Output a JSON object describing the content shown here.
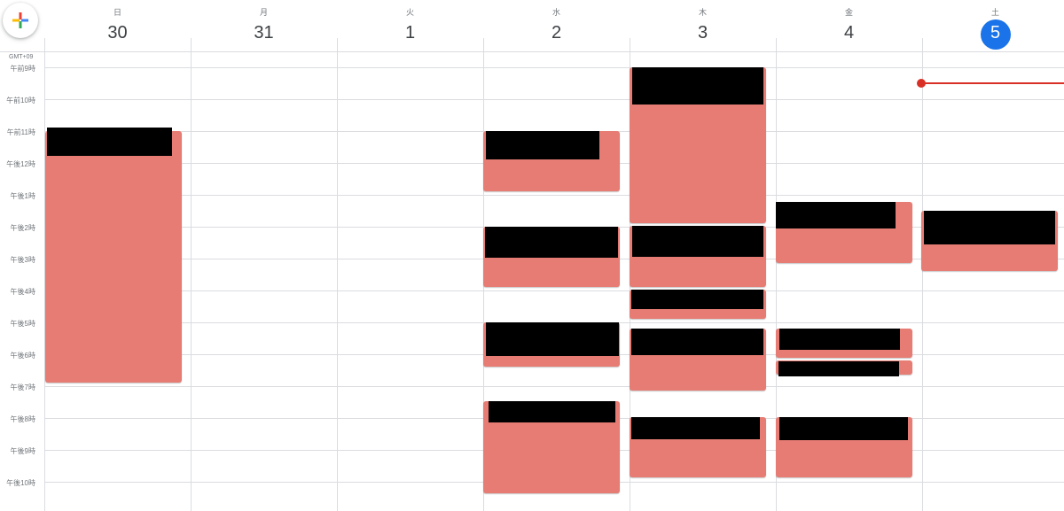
{
  "header": {
    "create_icon": "plus-multicolor-icon",
    "days": [
      {
        "dow": "日",
        "date": "30"
      },
      {
        "dow": "月",
        "date": "31"
      },
      {
        "dow": "火",
        "date": "1"
      },
      {
        "dow": "水",
        "date": "2"
      },
      {
        "dow": "木",
        "date": "3"
      },
      {
        "dow": "金",
        "date": "4"
      },
      {
        "dow": "土",
        "date": "5",
        "today": true
      }
    ]
  },
  "timezone": "GMT+09",
  "hours": [
    "午前9時",
    "午前10時",
    "午前11時",
    "午後12時",
    "午後1時",
    "午後2時",
    "午後3時",
    "午後4時",
    "午後5時",
    "午後6時",
    "午後7時",
    "午後8時",
    "午後9時",
    "午後10時"
  ],
  "colors": {
    "event": "#e67c73",
    "today_accent": "#1a73e8",
    "now_indicator": "#d93025",
    "redaction": "#000000"
  }
}
